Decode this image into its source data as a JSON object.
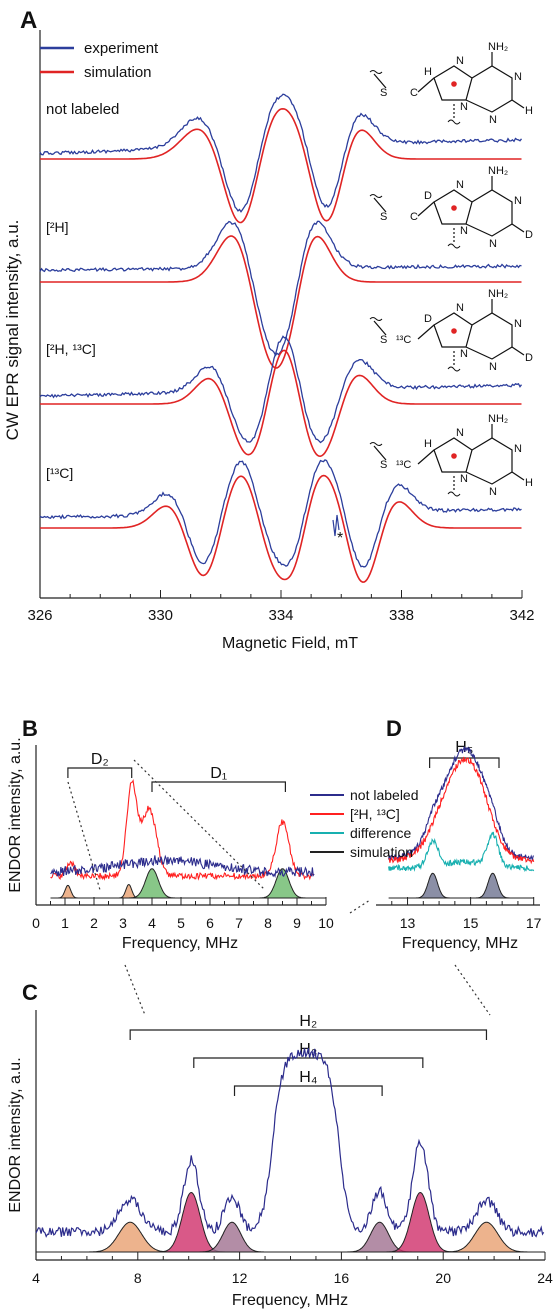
{
  "colors": {
    "experiment": "#2c3e9c",
    "simulation": "#e02424",
    "not_labeled": "#2c2c8c",
    "labeled": "#ff2020",
    "difference": "#18b0b0",
    "sim_black": "#222222",
    "fill_orange": "#e8a070",
    "fill_green": "#6ab96a",
    "fill_pink": "#d0306a",
    "fill_mauve": "#a07090",
    "fill_slate": "#5a6080",
    "label_red": "#e02424",
    "label_blue": "#2030c0"
  },
  "chart_data": [
    {
      "panel": "A",
      "type": "line",
      "ylabel": "CW EPR signal intensity, a.u.",
      "xlabel": "Magnetic Field, mT",
      "xlim": [
        326,
        342
      ],
      "xticks": [
        "326",
        "330",
        "334",
        "338",
        "342"
      ],
      "legend": [
        "experiment",
        "simulation"
      ],
      "legend_placement": "top-left",
      "traces": [
        {
          "label": "not labeled",
          "baseline": 0,
          "lines": [
            [
              332.0,
              0.9,
              0.75
            ],
            [
              333.2,
              -1.0,
              0.6
            ],
            [
              335.0,
              0.9,
              0.65
            ],
            [
              336.0,
              -1.0,
              0.6
            ]
          ],
          "offsetLeft": -0.25,
          "offsetRight": 0.15
        },
        {
          "label": "[²H]",
          "baseline": 0,
          "lines": [
            [
              333.0,
              1.1,
              0.65
            ],
            [
              334.6,
              -1.1,
              0.6
            ]
          ],
          "offsetLeft": -0.05,
          "offsetRight": 0.05
        },
        {
          "label": "[²H, ¹³C]",
          "baseline": 0,
          "lines": [
            [
              332.2,
              0.8,
              0.6
            ],
            [
              333.6,
              -0.9,
              0.55
            ],
            [
              334.6,
              0.85,
              0.55
            ],
            [
              336.0,
              -0.9,
              0.6
            ]
          ],
          "offsetLeft": -0.2,
          "offsetRight": 0.15
        },
        {
          "label": "[¹³C]",
          "baseline": 0,
          "lines": [
            [
              330.8,
              0.7,
              0.6
            ],
            [
              332.0,
              -0.8,
              0.55
            ],
            [
              333.3,
              0.9,
              0.55
            ],
            [
              334.8,
              -1.0,
              0.5
            ],
            [
              336.2,
              0.85,
              0.55
            ],
            [
              337.3,
              -0.85,
              0.6
            ]
          ],
          "offsetLeft": -0.1,
          "offsetRight": 0.15
        }
      ],
      "annotation": "*",
      "structure_labels": {
        "nh2": "NH₂",
        "n": "N",
        "h": "H",
        "s": "S",
        "c": "C",
        "d": "D",
        "c13": "¹³C",
        "c13_dash": "S—¹³C"
      }
    },
    {
      "panel": "B",
      "type": "line",
      "ylabel": "ENDOR intensity, a.u.",
      "xlabel": "Frequency, MHz",
      "xlim": [
        0,
        10
      ],
      "xticks": [
        "0",
        "1",
        "2",
        "3",
        "4",
        "5",
        "6",
        "7",
        "8",
        "9",
        "10"
      ],
      "brackets": [
        {
          "label": "D₂",
          "x1": 1.1,
          "x2": 3.3
        },
        {
          "label": "D₁",
          "x1": 4.0,
          "x2": 8.6
        }
      ],
      "labeled_peaks": [
        [
          1.2,
          0.15,
          0.12
        ],
        [
          3.3,
          1.0,
          0.18
        ],
        [
          3.9,
          0.75,
          0.25
        ],
        [
          8.5,
          0.6,
          0.22
        ]
      ],
      "sim_peaks": [
        {
          "center": 1.1,
          "height": 0.28,
          "sigma": 0.1,
          "fill": "orange"
        },
        {
          "center": 3.2,
          "height": 0.3,
          "sigma": 0.1,
          "fill": "orange"
        },
        {
          "center": 4.0,
          "height": 0.65,
          "sigma": 0.22,
          "fill": "green"
        },
        {
          "center": 8.5,
          "height": 0.65,
          "sigma": 0.22,
          "fill": "green"
        }
      ]
    },
    {
      "panel": "D",
      "type": "line",
      "xlabel": "Frequency, MHz",
      "xlim": [
        12,
        17.2
      ],
      "xticks": [
        "13",
        "15",
        "17"
      ],
      "bracket": {
        "label": "H₅",
        "x1": 13.7,
        "x2": 15.9
      },
      "legend": [
        "not labeled",
        "[²H, ¹³C]",
        "difference",
        "simulation"
      ],
      "legend_placement": "top-left",
      "sim_peaks": [
        {
          "center": 13.8,
          "height": 0.55,
          "sigma": 0.15
        },
        {
          "center": 15.7,
          "height": 0.55,
          "sigma": 0.15
        }
      ]
    },
    {
      "panel": "C",
      "type": "line",
      "ylabel": "ENDOR intensity, a.u.",
      "xlabel": "Frequency, MHz",
      "xlim": [
        4,
        24
      ],
      "xticks": [
        "4",
        "8",
        "12",
        "16",
        "20",
        "24"
      ],
      "brackets": [
        {
          "label": "H₂",
          "x1": 7.7,
          "x2": 21.7
        },
        {
          "label": "H₃",
          "x1": 10.2,
          "x2": 19.2
        },
        {
          "label": "H₄",
          "x1": 11.8,
          "x2": 17.6
        }
      ],
      "sim_peaks": [
        {
          "center": 7.7,
          "height": 0.35,
          "sigma": 0.45,
          "fill": "orange"
        },
        {
          "center": 10.1,
          "height": 0.7,
          "sigma": 0.35,
          "fill": "pink"
        },
        {
          "center": 11.7,
          "height": 0.35,
          "sigma": 0.35,
          "fill": "mauve"
        },
        {
          "center": 17.5,
          "height": 0.35,
          "sigma": 0.35,
          "fill": "mauve"
        },
        {
          "center": 19.1,
          "height": 0.7,
          "sigma": 0.35,
          "fill": "pink"
        },
        {
          "center": 21.7,
          "height": 0.35,
          "sigma": 0.45,
          "fill": "orange"
        }
      ]
    }
  ]
}
